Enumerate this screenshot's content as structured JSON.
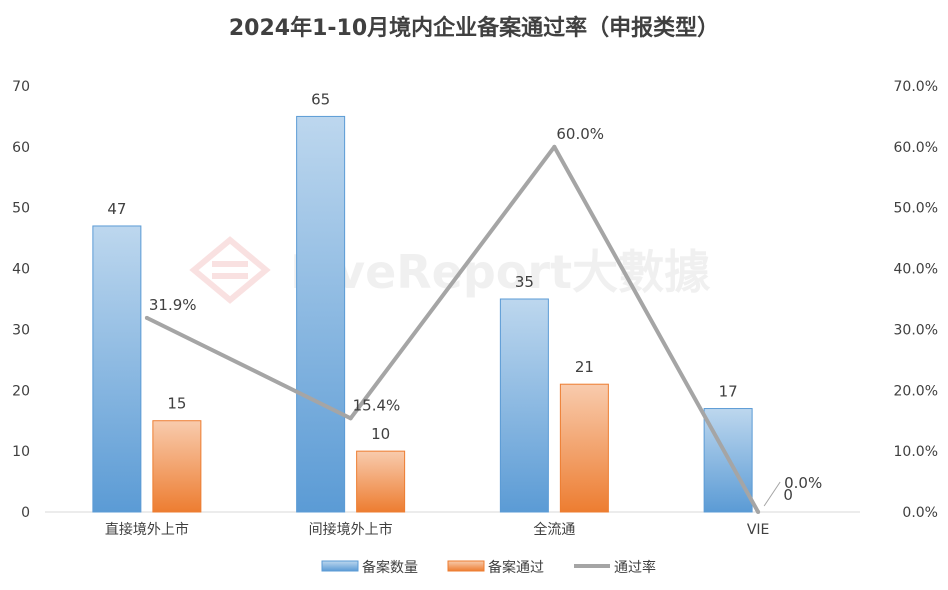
{
  "chart_data": {
    "type": "bar",
    "title": "2024年1-10月境内企业备案通过率（申报类型）",
    "watermark": "LiveReport大數據",
    "categories": [
      "直接境外上市",
      "间接境外上市",
      "全流通",
      "VIE"
    ],
    "series": [
      {
        "name": "备案数量",
        "type": "bar",
        "axis": "left",
        "values": [
          47,
          65,
          35,
          17
        ],
        "labels": [
          "47",
          "65",
          "35",
          "17"
        ]
      },
      {
        "name": "备案通过",
        "type": "bar",
        "axis": "left",
        "values": [
          15,
          10,
          21,
          0
        ],
        "labels": [
          "15",
          "10",
          "21",
          "0"
        ]
      },
      {
        "name": "通过率",
        "type": "line",
        "axis": "right",
        "values": [
          31.9,
          15.4,
          60.0,
          0.0
        ],
        "labels": [
          "31.9%",
          "15.4%",
          "60.0%",
          "0.0%"
        ]
      }
    ],
    "y_left": {
      "range": [
        0,
        70
      ],
      "ticks": [
        "0",
        "10",
        "20",
        "30",
        "40",
        "50",
        "60",
        "70"
      ]
    },
    "y_right": {
      "range": [
        0,
        70
      ],
      "ticks": [
        "0.0%",
        "10.0%",
        "20.0%",
        "30.0%",
        "40.0%",
        "50.0%",
        "60.0%",
        "70.0%"
      ]
    },
    "grid": false,
    "legend_position": "bottom",
    "colors": {
      "count": "#5b9bd5",
      "passed": "#ed7d31",
      "rate": "#a5a5a5",
      "text": "#404040",
      "axis": "#d9d9d9"
    }
  }
}
